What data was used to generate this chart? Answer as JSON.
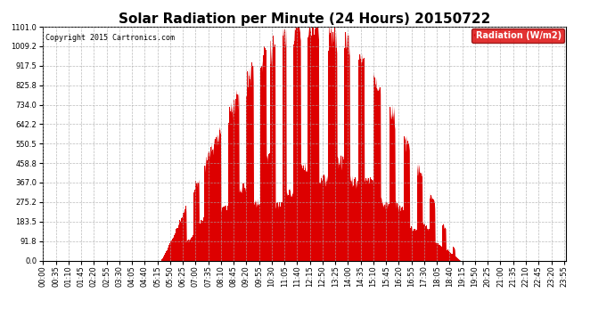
{
  "title": "Solar Radiation per Minute (24 Hours) 20150722",
  "copyright_text": "Copyright 2015 Cartronics.com",
  "legend_label": "Radiation (W/m2)",
  "legend_bg": "#dd0000",
  "legend_text_color": "#ffffff",
  "bar_color": "#dd0000",
  "background_color": "#ffffff",
  "grid_color": "#aaaaaa",
  "title_fontsize": 11,
  "copyright_fontsize": 6,
  "tick_fontsize": 6,
  "ytick_values": [
    0.0,
    91.8,
    183.5,
    275.2,
    367.0,
    458.8,
    550.5,
    642.2,
    734.0,
    825.8,
    917.5,
    1009.2,
    1101.0
  ],
  "ylim": [
    0.0,
    1101.0
  ],
  "xlabel_rotation": 90,
  "xtick_step_minutes": 35,
  "total_minutes": 1440,
  "sunrise_minute": 325,
  "sunset_minute": 1150,
  "peak_minute": 740,
  "peak_value": 1090.0
}
